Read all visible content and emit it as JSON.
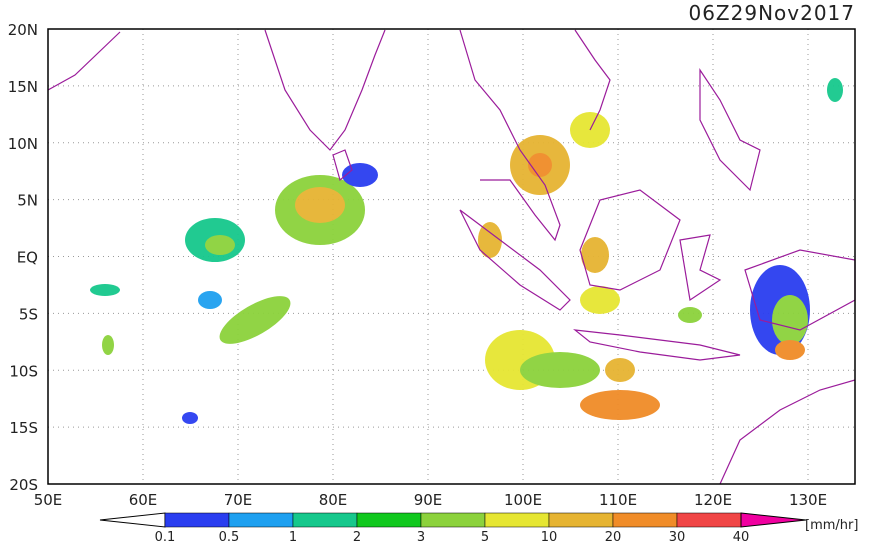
{
  "header": {
    "title": "06Z29Nov2017"
  },
  "map": {
    "lat_labels": [
      "20N",
      "15N",
      "10N",
      "5N",
      "EQ",
      "5S",
      "10S",
      "15S",
      "20S"
    ],
    "lon_labels": [
      "50E",
      "60E",
      "70E",
      "80E",
      "90E",
      "100E",
      "110E",
      "120E",
      "130E"
    ]
  },
  "colorbar": {
    "labels": [
      "0.1",
      "0.5",
      "1",
      "2",
      "3",
      "5",
      "10",
      "20",
      "30",
      "40"
    ],
    "colors": [
      "#2a3ef0",
      "#1ea0f0",
      "#16c88c",
      "#10c81e",
      "#8cd23c",
      "#e6e632",
      "#e6b432",
      "#f08c28",
      "#f04646",
      "#f000a0"
    ],
    "unit": "[mm/hr]"
  }
}
